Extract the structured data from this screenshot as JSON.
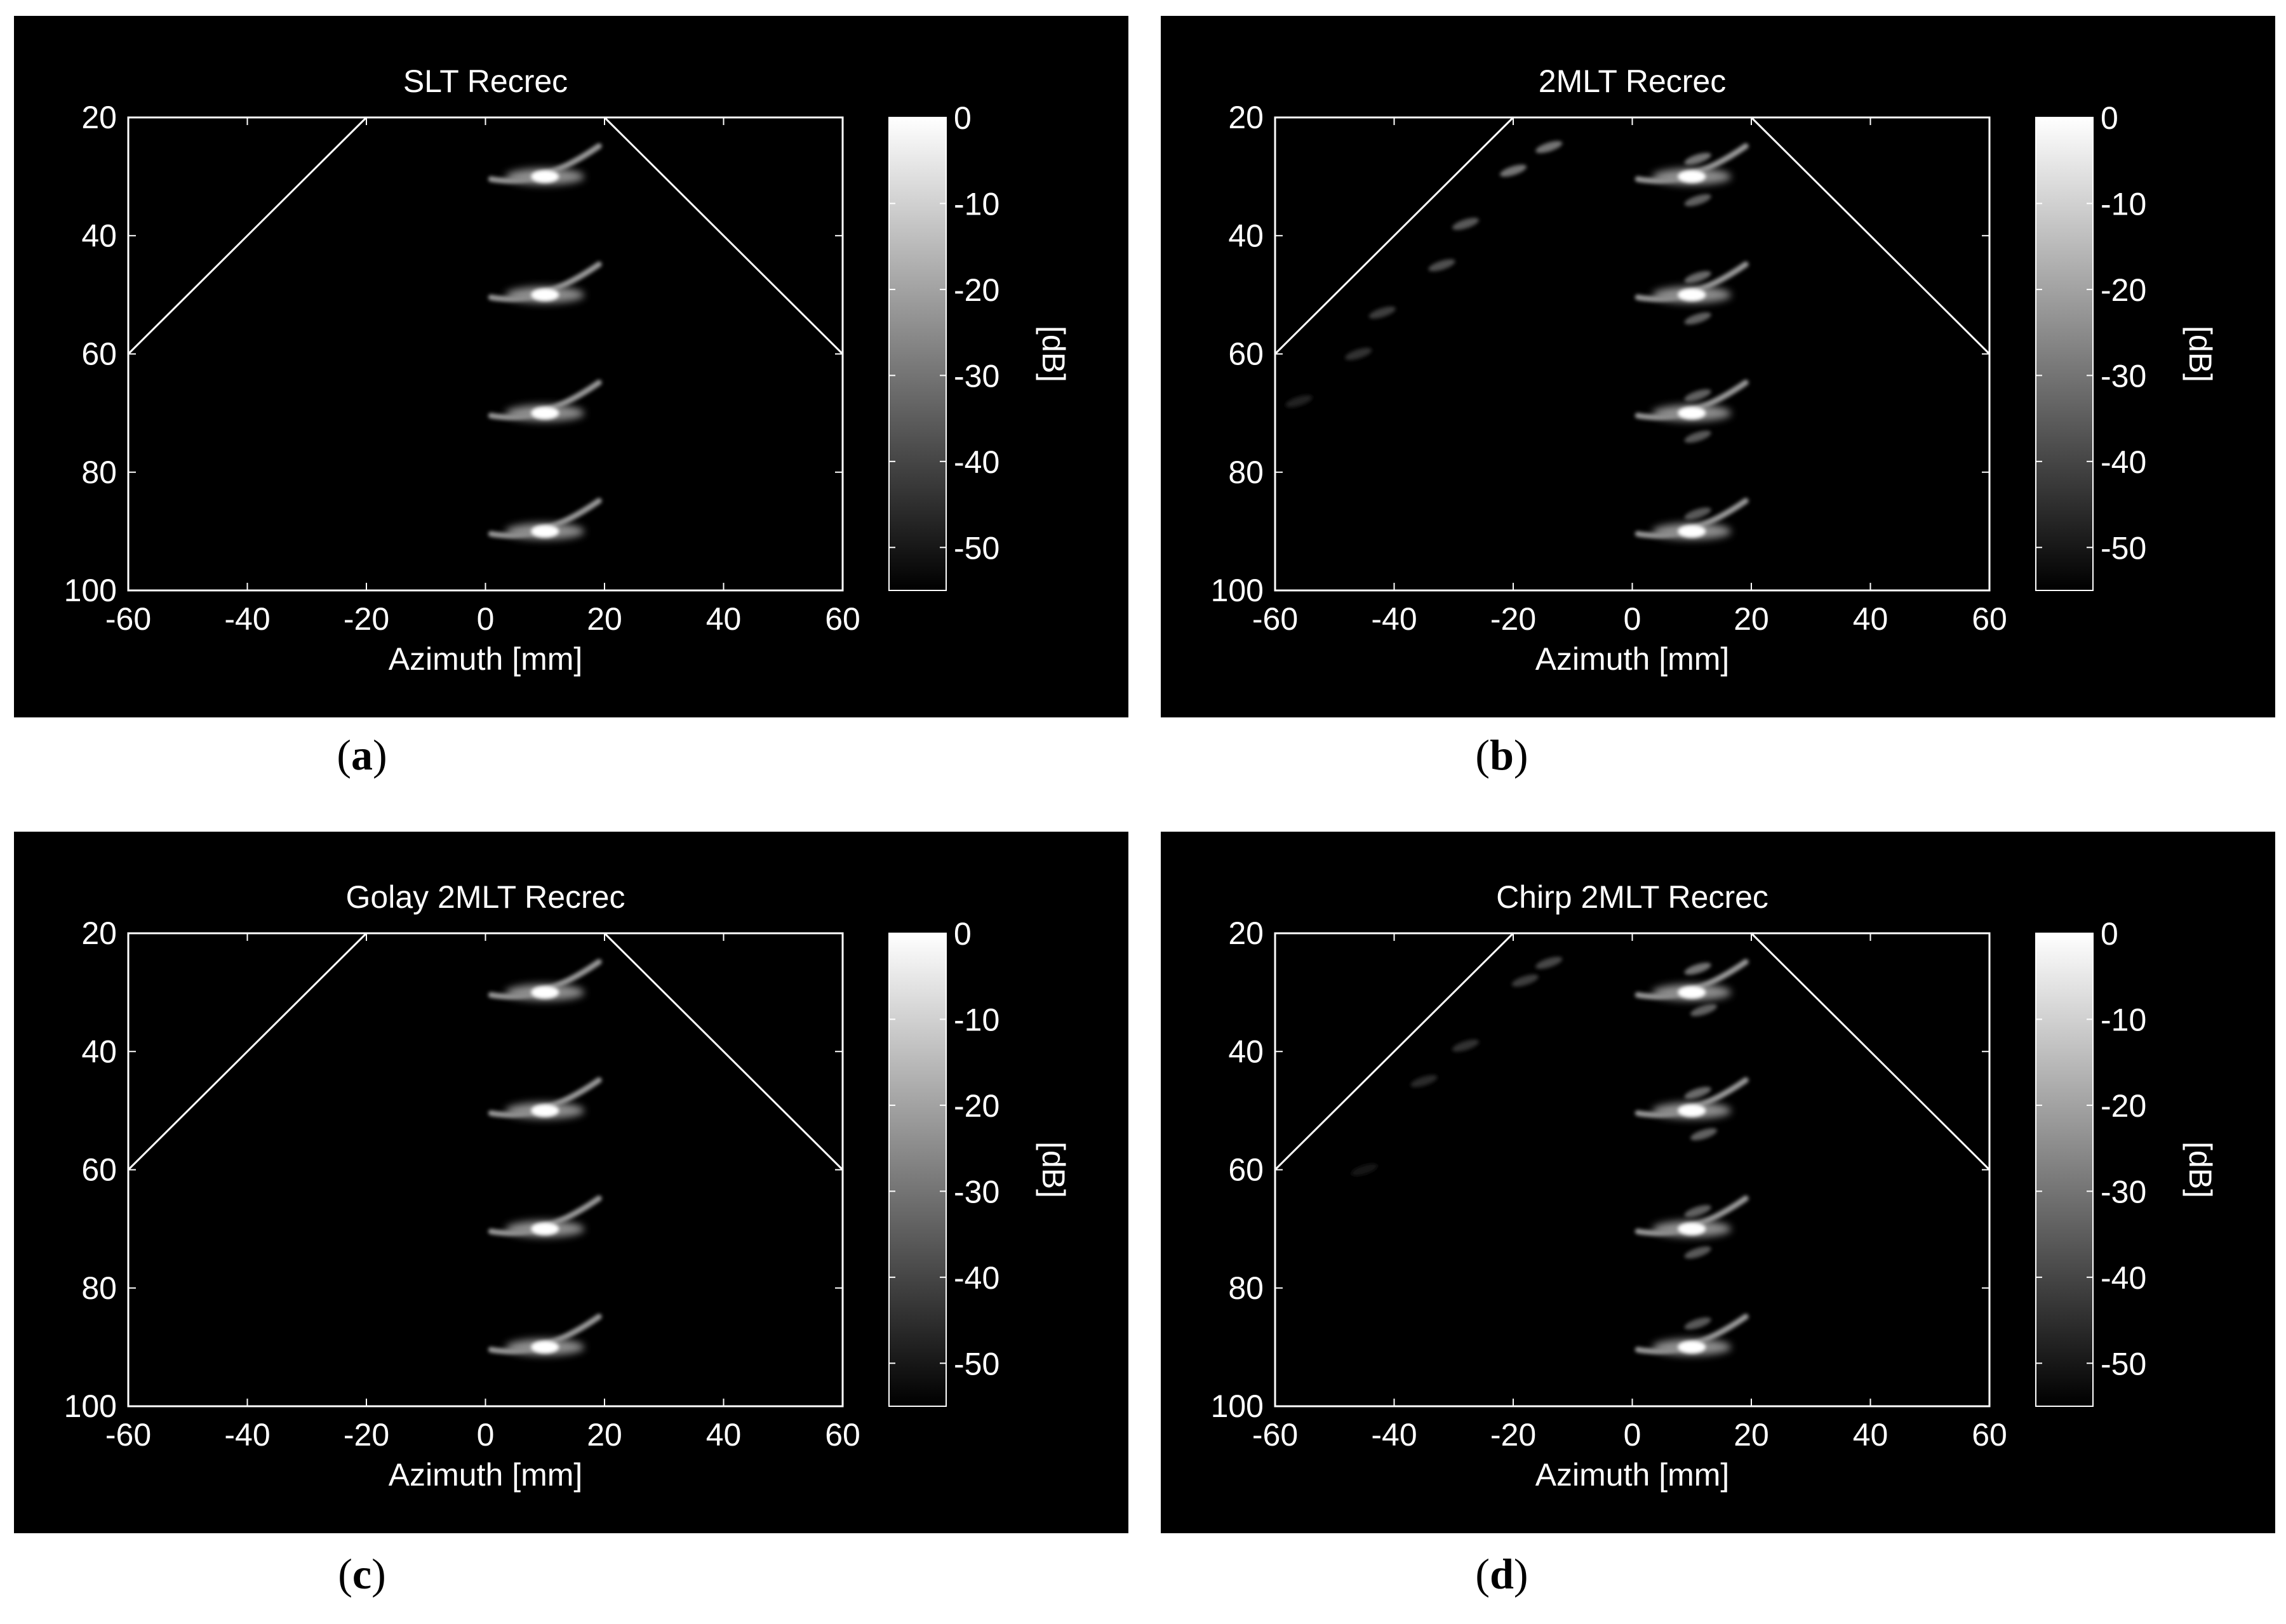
{
  "figure": {
    "panels": [
      {
        "letter": "a",
        "chart_data": {
          "type": "heatmap",
          "title": "SLT Recrec",
          "xlabel": "Azimuth [mm]",
          "ylabel": "",
          "xlim": [
            -60,
            60
          ],
          "ylim": [
            100,
            20
          ],
          "y_reversed": true,
          "xticks": [
            "-60",
            "-40",
            "-20",
            "0",
            "20",
            "40",
            "60"
          ],
          "yticks": [
            "20",
            "40",
            "60",
            "80",
            "100"
          ],
          "sector_lines": [
            [
              [
                -60,
                60
              ],
              [
                -20,
                20
              ]
            ],
            [
              [
                20,
                20
              ],
              [
                60,
                60
              ]
            ]
          ],
          "colorbar": {
            "label": "[dB]",
            "range": [
              -55,
              0
            ],
            "ticks": [
              "0",
              "-10",
              "-20",
              "-30",
              "-40",
              "-50"
            ],
            "colormap": "gray"
          },
          "point_targets": [
            {
              "x": 10,
              "y": 30,
              "level_db": 0
            },
            {
              "x": 10,
              "y": 50,
              "level_db": 0
            },
            {
              "x": 10,
              "y": 70,
              "level_db": 0
            },
            {
              "x": 10,
              "y": 90,
              "level_db": 0
            }
          ],
          "artifacts": [],
          "grid": false
        }
      },
      {
        "letter": "b",
        "chart_data": {
          "type": "heatmap",
          "title": "2MLT Recrec",
          "xlabel": "Azimuth [mm]",
          "ylabel": "",
          "xlim": [
            -60,
            60
          ],
          "ylim": [
            100,
            20
          ],
          "y_reversed": true,
          "xticks": [
            "-60",
            "-40",
            "-20",
            "0",
            "20",
            "40",
            "60"
          ],
          "yticks": [
            "20",
            "40",
            "60",
            "80",
            "100"
          ],
          "sector_lines": [
            [
              [
                -60,
                60
              ],
              [
                -20,
                20
              ]
            ],
            [
              [
                20,
                20
              ],
              [
                60,
                60
              ]
            ]
          ],
          "colorbar": {
            "label": "[dB]",
            "range": [
              -55,
              0
            ],
            "ticks": [
              "0",
              "-10",
              "-20",
              "-30",
              "-40",
              "-50"
            ],
            "colormap": "gray"
          },
          "point_targets": [
            {
              "x": 10,
              "y": 30,
              "level_db": 0
            },
            {
              "x": 10,
              "y": 50,
              "level_db": 0
            },
            {
              "x": 10,
              "y": 70,
              "level_db": 0
            },
            {
              "x": 10,
              "y": 90,
              "level_db": 0
            }
          ],
          "artifacts": [
            {
              "x": -14,
              "y": 25,
              "level_db": -30
            },
            {
              "x": -20,
              "y": 29,
              "level_db": -30
            },
            {
              "x": -28,
              "y": 38,
              "level_db": -36
            },
            {
              "x": -32,
              "y": 45,
              "level_db": -38
            },
            {
              "x": -42,
              "y": 53,
              "level_db": -42
            },
            {
              "x": -46,
              "y": 60,
              "level_db": -44
            },
            {
              "x": -56,
              "y": 68,
              "level_db": -48
            },
            {
              "x": 11,
              "y": 27,
              "level_db": -30
            },
            {
              "x": 11,
              "y": 34,
              "level_db": -34
            },
            {
              "x": 11,
              "y": 47,
              "level_db": -32
            },
            {
              "x": 11,
              "y": 54,
              "level_db": -34
            },
            {
              "x": 11,
              "y": 67,
              "level_db": -34
            },
            {
              "x": 11,
              "y": 74,
              "level_db": -36
            },
            {
              "x": 11,
              "y": 87,
              "level_db": -36
            }
          ],
          "grid": false
        }
      },
      {
        "letter": "c",
        "chart_data": {
          "type": "heatmap",
          "title": "Golay 2MLT Recrec",
          "xlabel": "Azimuth [mm]",
          "ylabel": "",
          "xlim": [
            -60,
            60
          ],
          "ylim": [
            100,
            20
          ],
          "y_reversed": true,
          "xticks": [
            "-60",
            "-40",
            "-20",
            "0",
            "20",
            "40",
            "60"
          ],
          "yticks": [
            "20",
            "40",
            "60",
            "80",
            "100"
          ],
          "sector_lines": [
            [
              [
                -60,
                60
              ],
              [
                -20,
                20
              ]
            ],
            [
              [
                20,
                20
              ],
              [
                60,
                60
              ]
            ]
          ],
          "colorbar": {
            "label": "[dB]",
            "range": [
              -55,
              0
            ],
            "ticks": [
              "0",
              "-10",
              "-20",
              "-30",
              "-40",
              "-50"
            ],
            "colormap": "gray"
          },
          "point_targets": [
            {
              "x": 10,
              "y": 30,
              "level_db": 0
            },
            {
              "x": 10,
              "y": 50,
              "level_db": 0
            },
            {
              "x": 10,
              "y": 70,
              "level_db": 0
            },
            {
              "x": 10,
              "y": 90,
              "level_db": 0
            }
          ],
          "artifacts": [],
          "grid": false
        }
      },
      {
        "letter": "d",
        "chart_data": {
          "type": "heatmap",
          "title": "Chirp 2MLT Recrec",
          "xlabel": "Azimuth [mm]",
          "ylabel": "",
          "xlim": [
            -60,
            60
          ],
          "ylim": [
            100,
            20
          ],
          "y_reversed": true,
          "xticks": [
            "-60",
            "-40",
            "-20",
            "0",
            "20",
            "40",
            "60"
          ],
          "yticks": [
            "20",
            "40",
            "60",
            "80",
            "100"
          ],
          "sector_lines": [
            [
              [
                -60,
                60
              ],
              [
                -20,
                20
              ]
            ],
            [
              [
                20,
                20
              ],
              [
                60,
                60
              ]
            ]
          ],
          "colorbar": {
            "label": "[dB]",
            "range": [
              -55,
              0
            ],
            "ticks": [
              "0",
              "-10",
              "-20",
              "-30",
              "-40",
              "-50"
            ],
            "colormap": "gray"
          },
          "point_targets": [
            {
              "x": 10,
              "y": 30,
              "level_db": 0
            },
            {
              "x": 10,
              "y": 50,
              "level_db": 0
            },
            {
              "x": 10,
              "y": 70,
              "level_db": 0
            },
            {
              "x": 10,
              "y": 90,
              "level_db": 0
            }
          ],
          "artifacts": [
            {
              "x": -14,
              "y": 25,
              "level_db": -40
            },
            {
              "x": -18,
              "y": 28,
              "level_db": -42
            },
            {
              "x": -28,
              "y": 39,
              "level_db": -44
            },
            {
              "x": -35,
              "y": 45,
              "level_db": -46
            },
            {
              "x": -45,
              "y": 60,
              "level_db": -50
            },
            {
              "x": 11,
              "y": 26,
              "level_db": -30
            },
            {
              "x": 12,
              "y": 33,
              "level_db": -34
            },
            {
              "x": 11,
              "y": 47,
              "level_db": -32
            },
            {
              "x": 12,
              "y": 54,
              "level_db": -34
            },
            {
              "x": 11,
              "y": 67,
              "level_db": -34
            },
            {
              "x": 11,
              "y": 74,
              "level_db": -36
            },
            {
              "x": 11,
              "y": 86,
              "level_db": -36
            }
          ],
          "grid": false
        }
      }
    ]
  }
}
